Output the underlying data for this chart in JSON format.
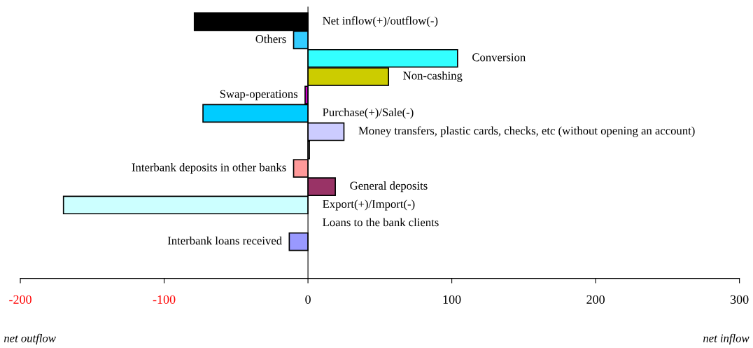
{
  "chart_data": {
    "type": "bar",
    "orientation": "horizontal",
    "categories": [
      "Net inflow(+)/outflow(-)",
      "Others",
      "Conversion",
      "Non-cashing",
      "Swap-operations",
      "Purchase(+)/Sale(-)",
      "Money transfers, plastic cards, checks, etc (without opening an account)",
      null,
      "Interbank deposits in other banks",
      "General deposits",
      "Export(+)/Import(-)",
      "Loans to the bank clients",
      "Interbank loans received"
    ],
    "values": [
      -79,
      -10,
      104,
      56,
      -2,
      -73,
      25,
      1,
      -10,
      19,
      -170,
      0,
      -13
    ],
    "colors": [
      "#000000",
      "#33ccff",
      "#33ffff",
      "#cccc00",
      "#cc00cc",
      "#00ccff",
      "#ccccff",
      "#ffffff",
      "#ff9999",
      "#993366",
      "#ccffff",
      "#ffffff",
      "#9999ff"
    ],
    "xlim": [
      -200,
      300
    ],
    "xticks": [
      -200,
      -100,
      0,
      100,
      200,
      300
    ],
    "annotations": [
      "net outflow",
      "net inflow"
    ]
  }
}
